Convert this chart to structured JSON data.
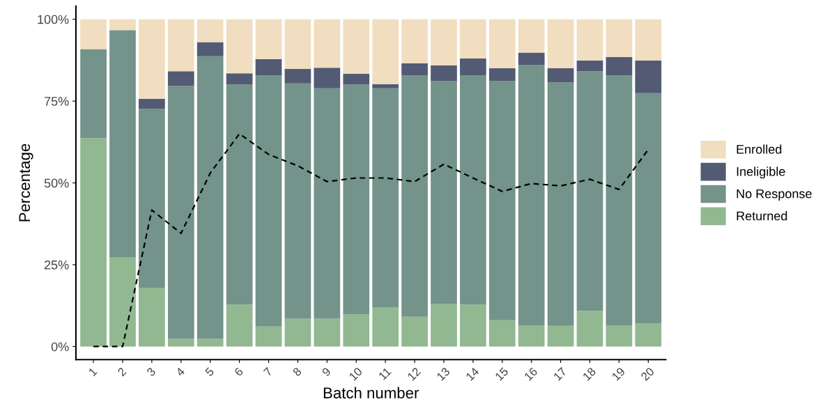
{
  "chart_data": {
    "type": "bar",
    "stacked": true,
    "xlabel": "Batch number",
    "ylabel": "Percentage",
    "categories": [
      "1",
      "2",
      "3",
      "4",
      "5",
      "6",
      "7",
      "8",
      "9",
      "10",
      "11",
      "12",
      "13",
      "14",
      "15",
      "16",
      "17",
      "18",
      "19",
      "20"
    ],
    "series": [
      {
        "name": "Returned",
        "color": "#91b890",
        "values": [
          63.7,
          27.2,
          18.0,
          2.4,
          2.4,
          12.8,
          6.1,
          8.5,
          8.5,
          9.8,
          12.0,
          9.1,
          13.0,
          12.8,
          8.0,
          6.5,
          6.3,
          10.9,
          6.5,
          7.0
        ]
      },
      {
        "name": "No Response",
        "color": "#74938a",
        "values": [
          27.2,
          69.5,
          54.6,
          77.2,
          86.3,
          67.2,
          76.7,
          71.9,
          70.4,
          70.2,
          66.9,
          73.7,
          68.1,
          70.0,
          73.1,
          79.6,
          74.4,
          73.2,
          76.3,
          70.4
        ]
      },
      {
        "name": "Ineligible",
        "color": "#525a74",
        "values": [
          0,
          0,
          3.1,
          4.5,
          4.3,
          3.5,
          5.0,
          4.4,
          6.3,
          3.3,
          1.3,
          3.7,
          4.8,
          5.2,
          3.9,
          3.7,
          4.3,
          3.3,
          5.7,
          10.0
        ]
      },
      {
        "name": "Enrolled",
        "color": "#f1ddbf",
        "values": [
          9.1,
          3.3,
          24.3,
          15.9,
          7.0,
          16.5,
          12.2,
          15.2,
          14.8,
          16.7,
          19.8,
          13.5,
          14.1,
          12.0,
          15.0,
          10.2,
          15.0,
          12.6,
          11.5,
          12.6
        ]
      },
      {
        "type": "line",
        "color": "#000000",
        "line_style": "dashed",
        "marker": "none",
        "values": [
          0,
          0,
          41.7,
          34.6,
          53.0,
          65.0,
          58.7,
          55.2,
          50.4,
          51.5,
          51.5,
          50.4,
          55.7,
          51.5,
          47.4,
          49.8,
          49.1,
          51.1,
          48.0,
          60.2
        ]
      }
    ],
    "ylim": [
      0,
      100
    ],
    "yticks": [
      {
        "value": 0,
        "label": "0%"
      },
      {
        "value": 25,
        "label": "25%"
      },
      {
        "value": 50,
        "label": "50%"
      },
      {
        "value": 75,
        "label": "75%"
      },
      {
        "value": 100,
        "label": "100%"
      }
    ],
    "grid": false,
    "legend": "right"
  }
}
